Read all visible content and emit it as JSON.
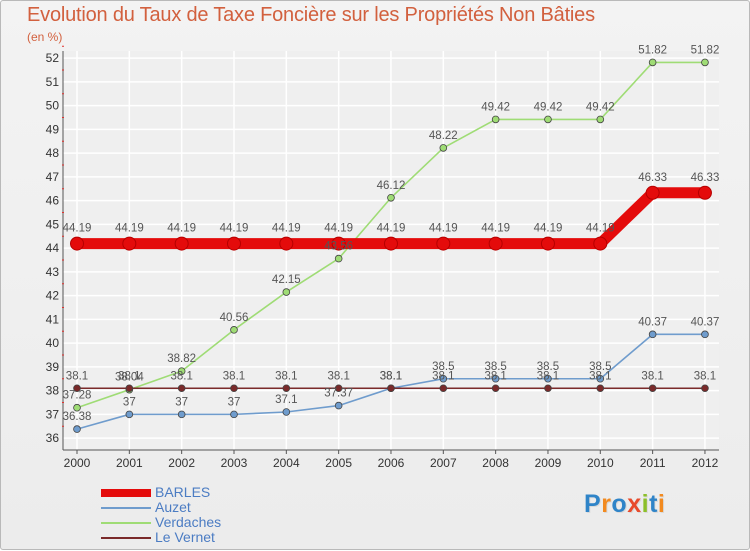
{
  "title": "Evolution du Taux de Taxe Foncière sur les Propriétés Non Bâties",
  "unit_label": "(en %)",
  "logo": {
    "text": "Proxiti",
    "letters": [
      "P",
      "r",
      "o",
      "x",
      "i",
      "t",
      "i"
    ],
    "colors": [
      "#2f84c8",
      "#f28a1f",
      "#2f84c8",
      "#e84b2c",
      "#8cbf2a",
      "#2f84c8",
      "#f28a1f"
    ]
  },
  "colors": {
    "background": "#efefef",
    "grid": "#ffffff",
    "axis": "#555555",
    "red_ticks": "#e0302d"
  },
  "chart_data": {
    "type": "line",
    "title": "Evolution du Taux de Taxe Foncière sur les Propriétés Non Bâties",
    "xlabel": "",
    "ylabel": "(en %)",
    "categories": [
      "2000",
      "2001",
      "2002",
      "2003",
      "2004",
      "2005",
      "2006",
      "2007",
      "2008",
      "2009",
      "2010",
      "2011",
      "2012"
    ],
    "ylim": [
      35.5,
      52.3
    ],
    "yticks": [
      36,
      37,
      38,
      39,
      40,
      41,
      42,
      43,
      44,
      45,
      46,
      47,
      48,
      49,
      50,
      51,
      52
    ],
    "grid": true,
    "legend_position": "bottom-left",
    "series": [
      {
        "name": "BARLES",
        "color": "#e40b0b",
        "bold": true,
        "values": [
          44.19,
          44.19,
          44.19,
          44.19,
          44.19,
          44.19,
          44.19,
          44.19,
          44.19,
          44.19,
          44.19,
          46.33,
          46.33
        ],
        "labels": [
          "44.19",
          "44.19",
          "44.19",
          "44.19",
          "44.19",
          "44.19",
          "44.19",
          "44.19",
          "44.19",
          "44.19",
          "44.19",
          "46.33",
          "46.33"
        ]
      },
      {
        "name": "Auzet",
        "color": "#6f9ccd",
        "values": [
          36.38,
          37,
          37,
          37,
          37.1,
          37.37,
          38.1,
          38.5,
          38.5,
          38.5,
          38.5,
          40.37,
          40.37
        ],
        "labels": [
          "36.38",
          "37",
          "37",
          "37",
          "37.1",
          "37.37",
          "38.1",
          "38.5",
          "38.5",
          "38.5",
          "38.5",
          "40.37",
          "40.37"
        ]
      },
      {
        "name": "Verdaches",
        "color": "#9fdc75",
        "values": [
          37.28,
          38.04,
          38.82,
          40.56,
          42.15,
          43.56,
          46.12,
          48.22,
          49.42,
          49.42,
          49.42,
          51.82,
          51.82
        ],
        "labels": [
          "37.28",
          "38.04",
          "38.82",
          "40.56",
          "42.15",
          "43.56",
          "46.12",
          "48.22",
          "49.42",
          "49.42",
          "49.42",
          "51.82",
          "51.82"
        ]
      },
      {
        "name": "Le Vernet",
        "color": "#7a2a2a",
        "values": [
          38.1,
          38.1,
          38.1,
          38.1,
          38.1,
          38.1,
          38.1,
          38.1,
          38.1,
          38.1,
          38.1,
          38.1,
          38.1
        ],
        "labels": [
          "38.1",
          "38.1",
          "38.1",
          "38.1",
          "38.1",
          "38.1",
          "38.1",
          "38.1",
          "38.1",
          "38.1",
          "38.1",
          "38.1",
          "38.1"
        ]
      }
    ]
  }
}
